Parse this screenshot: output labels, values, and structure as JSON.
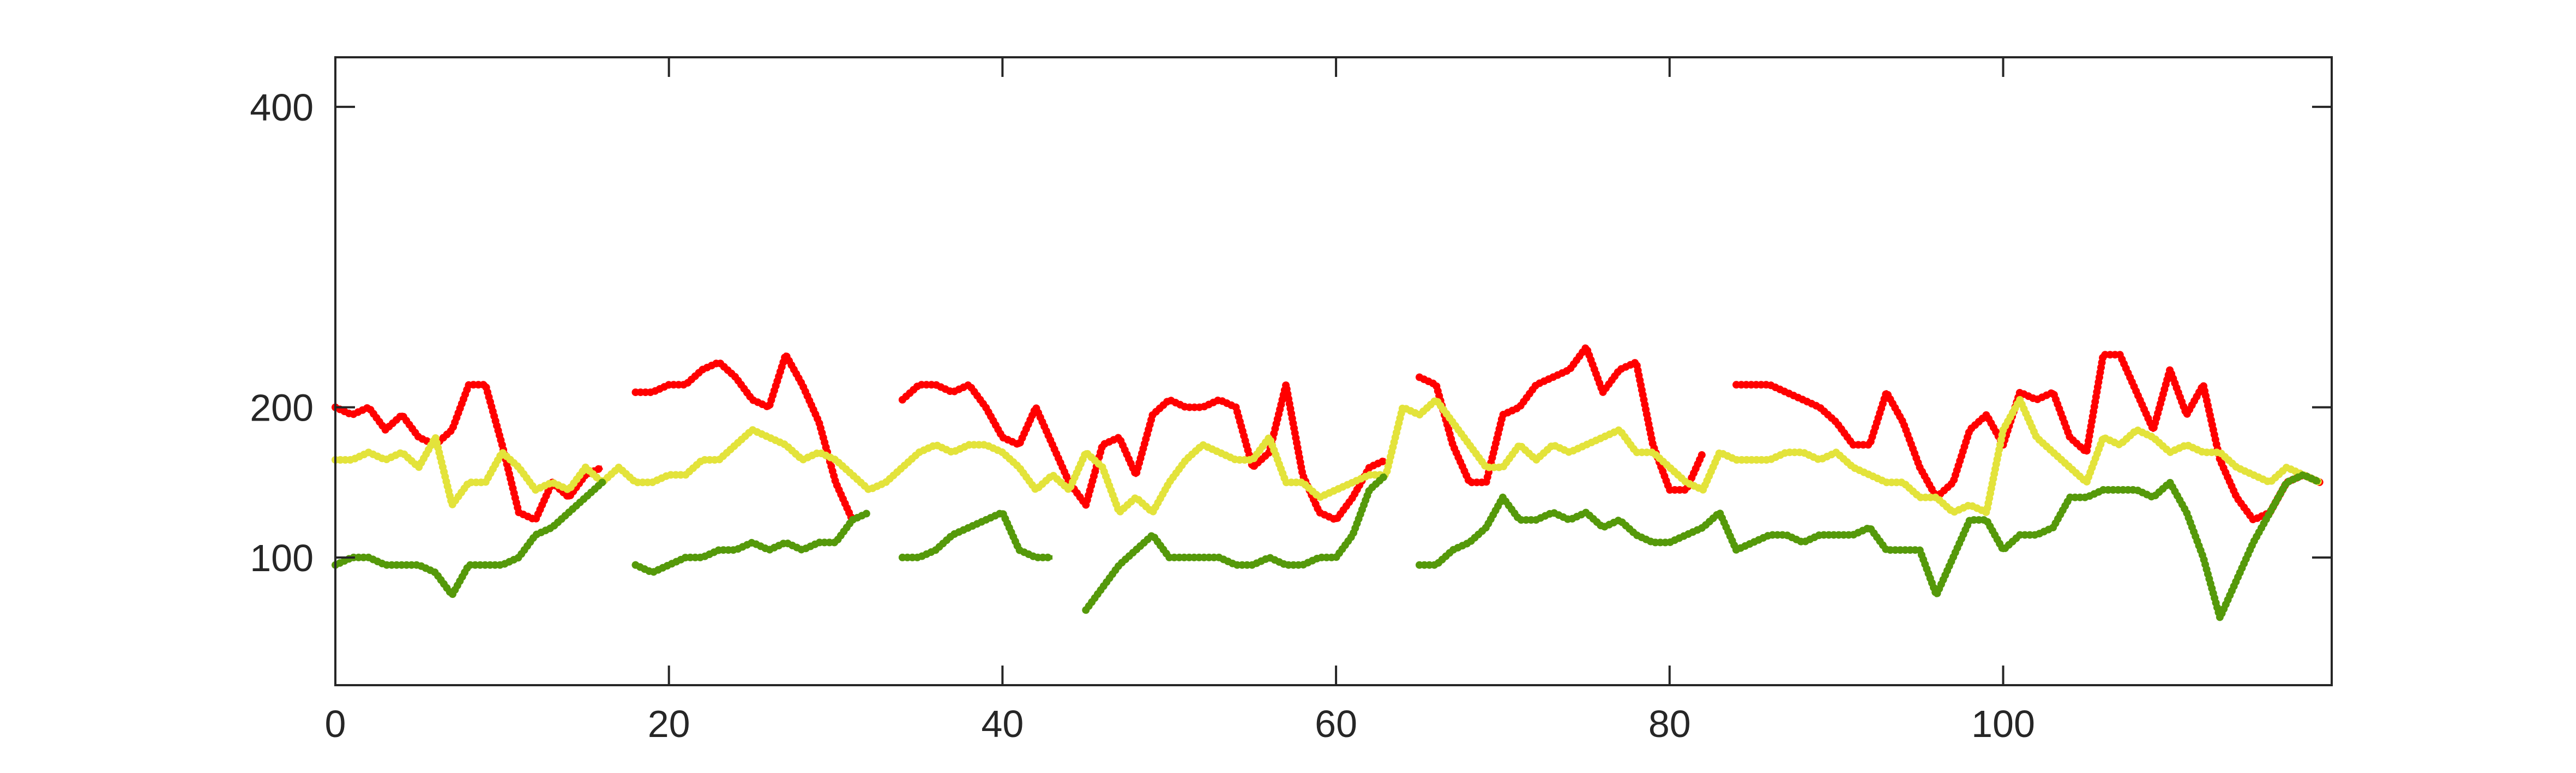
{
  "chart_data": {
    "type": "line",
    "x": [
      0,
      1,
      2,
      3,
      4,
      5,
      6,
      7,
      8,
      9,
      10,
      11,
      12,
      13,
      14,
      15,
      16,
      17,
      18,
      19,
      20,
      21,
      22,
      23,
      24,
      25,
      26,
      27,
      28,
      29,
      30,
      31,
      32,
      33,
      34,
      35,
      36,
      37,
      38,
      39,
      40,
      41,
      42,
      43,
      44,
      45,
      46,
      47,
      48,
      49,
      50,
      51,
      52,
      53,
      54,
      55,
      56,
      57,
      58,
      59,
      60,
      61,
      62,
      63,
      64,
      65,
      66,
      67,
      68,
      69,
      70,
      71,
      72,
      73,
      74,
      75,
      76,
      77,
      78,
      79,
      80,
      81,
      82,
      83,
      84,
      85,
      86,
      87,
      88,
      89,
      90,
      91,
      92,
      93,
      94,
      95,
      96,
      97,
      98,
      99,
      100,
      101,
      102,
      103,
      104,
      105,
      106,
      107,
      108,
      109,
      110,
      111,
      112,
      113,
      114,
      115,
      116,
      117,
      118,
      119
    ],
    "series": [
      {
        "color": "#ff0000",
        "values": [
          200,
          195,
          200,
          185,
          195,
          180,
          175,
          185,
          215,
          215,
          175,
          130,
          125,
          150,
          140,
          155,
          160,
          null,
          210,
          210,
          215,
          215,
          225,
          230,
          220,
          205,
          200,
          235,
          215,
          190,
          150,
          125,
          null,
          null,
          205,
          215,
          215,
          210,
          215,
          200,
          180,
          175,
          200,
          175,
          150,
          135,
          175,
          180,
          155,
          195,
          205,
          200,
          200,
          205,
          200,
          160,
          170,
          215,
          155,
          130,
          125,
          140,
          160,
          165,
          null,
          220,
          215,
          175,
          150,
          150,
          195,
          200,
          215,
          220,
          225,
          240,
          210,
          225,
          230,
          175,
          145,
          145,
          170,
          null,
          215,
          215,
          215,
          210,
          205,
          200,
          190,
          175,
          175,
          210,
          190,
          160,
          140,
          150,
          185,
          195,
          175,
          210,
          205,
          210,
          180,
          170,
          235,
          235,
          210,
          185,
          225,
          195,
          215,
          165,
          140,
          125,
          130,
          150,
          155,
          150
        ]
      },
      {
        "color": "#e3e33b",
        "values": [
          165,
          165,
          170,
          165,
          170,
          160,
          180,
          135,
          150,
          150,
          170,
          160,
          145,
          150,
          145,
          160,
          150,
          160,
          150,
          150,
          155,
          155,
          165,
          165,
          175,
          185,
          180,
          175,
          165,
          170,
          165,
          155,
          145,
          150,
          160,
          170,
          175,
          170,
          175,
          175,
          170,
          160,
          145,
          155,
          145,
          170,
          160,
          130,
          140,
          130,
          150,
          165,
          175,
          170,
          165,
          165,
          180,
          150,
          150,
          140,
          145,
          150,
          155,
          155,
          200,
          195,
          205,
          190,
          175,
          160,
          160,
          175,
          165,
          175,
          170,
          175,
          180,
          185,
          170,
          170,
          160,
          150,
          145,
          170,
          165,
          165,
          165,
          170,
          170,
          165,
          170,
          160,
          155,
          150,
          150,
          140,
          140,
          130,
          135,
          130,
          185,
          205,
          180,
          170,
          160,
          150,
          180,
          175,
          185,
          180,
          170,
          175,
          170,
          170,
          160,
          155,
          150,
          160,
          155,
          150
        ]
      },
      {
        "color": "#55990a",
        "values": [
          95,
          100,
          100,
          95,
          95,
          95,
          90,
          75,
          95,
          95,
          95,
          100,
          115,
          120,
          130,
          140,
          150,
          null,
          95,
          90,
          95,
          100,
          100,
          105,
          105,
          110,
          105,
          110,
          105,
          110,
          110,
          125,
          130,
          null,
          100,
          100,
          105,
          115,
          120,
          125,
          130,
          105,
          100,
          100,
          null,
          65,
          80,
          95,
          105,
          115,
          100,
          100,
          100,
          100,
          95,
          95,
          100,
          95,
          95,
          100,
          100,
          115,
          145,
          155,
          null,
          95,
          95,
          105,
          110,
          120,
          140,
          125,
          125,
          130,
          125,
          130,
          120,
          125,
          115,
          110,
          110,
          115,
          120,
          130,
          105,
          110,
          115,
          115,
          110,
          115,
          115,
          115,
          120,
          105,
          105,
          105,
          75,
          100,
          125,
          125,
          105,
          115,
          115,
          120,
          140,
          140,
          145,
          145,
          145,
          140,
          150,
          130,
          100,
          60,
          85,
          110,
          130,
          150,
          155,
          150
        ]
      }
    ],
    "xlim": [
      0,
      119.7
    ],
    "ylim": [
      15,
      433
    ],
    "xticks": [
      0,
      20,
      40,
      60,
      80,
      100
    ],
    "yticks": [
      100,
      200,
      400
    ]
  }
}
